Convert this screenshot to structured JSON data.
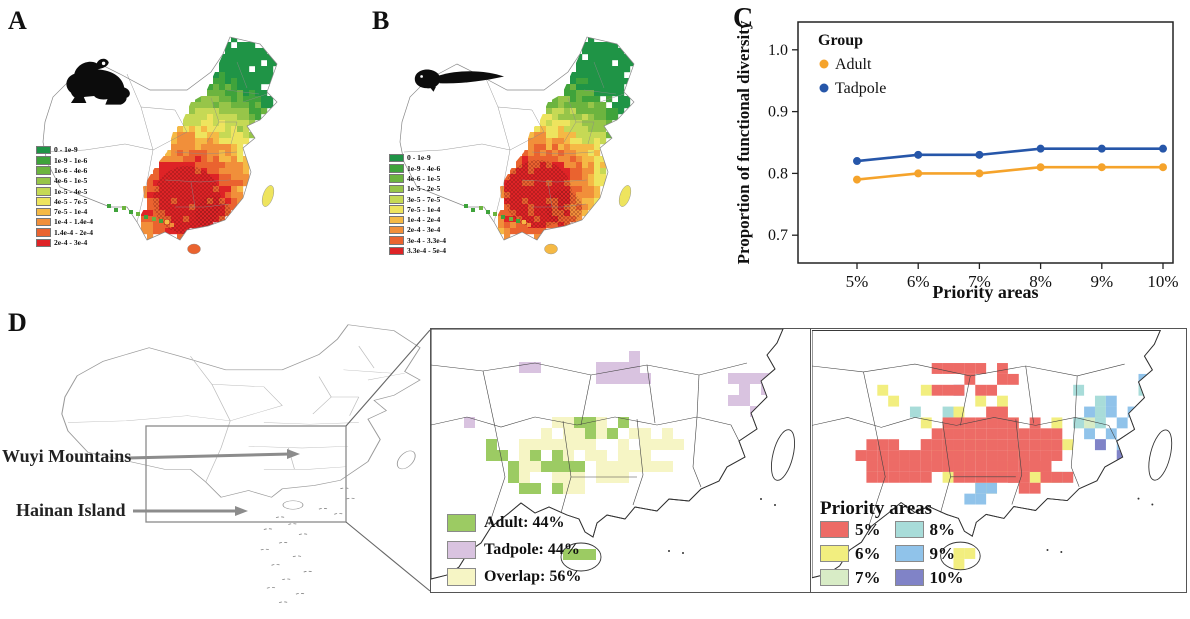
{
  "figure": {
    "background": "#ffffff",
    "panel_labels": {
      "a": "A",
      "b": "B",
      "c": "C",
      "d": "D"
    }
  },
  "panel_a": {
    "label": "A",
    "icon": "frog",
    "legend": [
      {
        "color": "#1f9446",
        "label": "0 - 1e-9"
      },
      {
        "color": "#3fa33b",
        "label": "1e-9 - 1e-6"
      },
      {
        "color": "#6cb43f",
        "label": "1e-6 - 4e-6"
      },
      {
        "color": "#97c549",
        "label": "4e-6 - 1e-5"
      },
      {
        "color": "#c6d955",
        "label": "1e-5 - 4e-5"
      },
      {
        "color": "#eee45e",
        "label": "4e-5 - 7e-5"
      },
      {
        "color": "#f5b945",
        "label": "7e-5 - 1e-4"
      },
      {
        "color": "#f18f3a",
        "label": "1e-4 - 1.4e-4"
      },
      {
        "color": "#ea632f",
        "label": "1.4e-4 - 2e-4"
      },
      {
        "color": "#de2326",
        "label": "2e-4 - 3e-4"
      }
    ]
  },
  "panel_b": {
    "label": "B",
    "icon": "tadpole",
    "legend": [
      {
        "color": "#1f9446",
        "label": "0 - 1e-9"
      },
      {
        "color": "#3fa33b",
        "label": "1e-9 - 4e-6"
      },
      {
        "color": "#6cb43f",
        "label": "4e-6 - 1e-5"
      },
      {
        "color": "#97c549",
        "label": "1e-5 - 2e-5"
      },
      {
        "color": "#c6d955",
        "label": "3e-5 - 7e-5"
      },
      {
        "color": "#eee45e",
        "label": "7e-5 - 1e-4"
      },
      {
        "color": "#f5b945",
        "label": "1e-4 - 2e-4"
      },
      {
        "color": "#f18f3a",
        "label": "2e-4 - 3e-4"
      },
      {
        "color": "#ea632f",
        "label": "3e-4 - 3.3e-4"
      },
      {
        "color": "#de2326",
        "label": "3.3e-4 - 5e-4"
      }
    ]
  },
  "chart_data": {
    "type": "line",
    "title": "",
    "xlabel": "Priority areas",
    "ylabel": "Proportion of functional diversity",
    "categories": [
      "5%",
      "6%",
      "7%",
      "8%",
      "9%",
      "10%"
    ],
    "yticks": [
      0.7,
      0.8,
      0.9,
      1.0
    ],
    "ylim": [
      0.655,
      1.045
    ],
    "grid": false,
    "legend_title": "Group",
    "legend_position": "top-left",
    "series": [
      {
        "name": "Adult",
        "color": "#F5A32B",
        "values": [
          0.79,
          0.8,
          0.8,
          0.81,
          0.81,
          0.81
        ]
      },
      {
        "name": "Tadpole",
        "color": "#2656A9",
        "values": [
          0.82,
          0.83,
          0.83,
          0.84,
          0.84,
          0.84
        ]
      }
    ]
  },
  "panel_d": {
    "label": "D",
    "annotations": [
      {
        "text": "Wuyi Mountains"
      },
      {
        "text": "Hainan Island"
      }
    ],
    "overlap_legend": [
      {
        "color": "#9ccb63",
        "label": "Adult: 44%"
      },
      {
        "color": "#d9c3e0",
        "label": "Tadpole: 44%"
      },
      {
        "color": "#f6f5c5",
        "label": "Overlap: 56%"
      }
    ],
    "priority_legend": {
      "title": "Priority areas",
      "items": [
        {
          "color": "#ed6b66",
          "label": "5%"
        },
        {
          "color": "#f2ee7f",
          "label": "6%"
        },
        {
          "color": "#d8ecc6",
          "label": "7%"
        },
        {
          "color": "#a8dcd9",
          "label": "8%"
        },
        {
          "color": "#90c3ea",
          "label": "9%"
        },
        {
          "color": "#8083c7",
          "label": "10%"
        }
      ]
    }
  }
}
